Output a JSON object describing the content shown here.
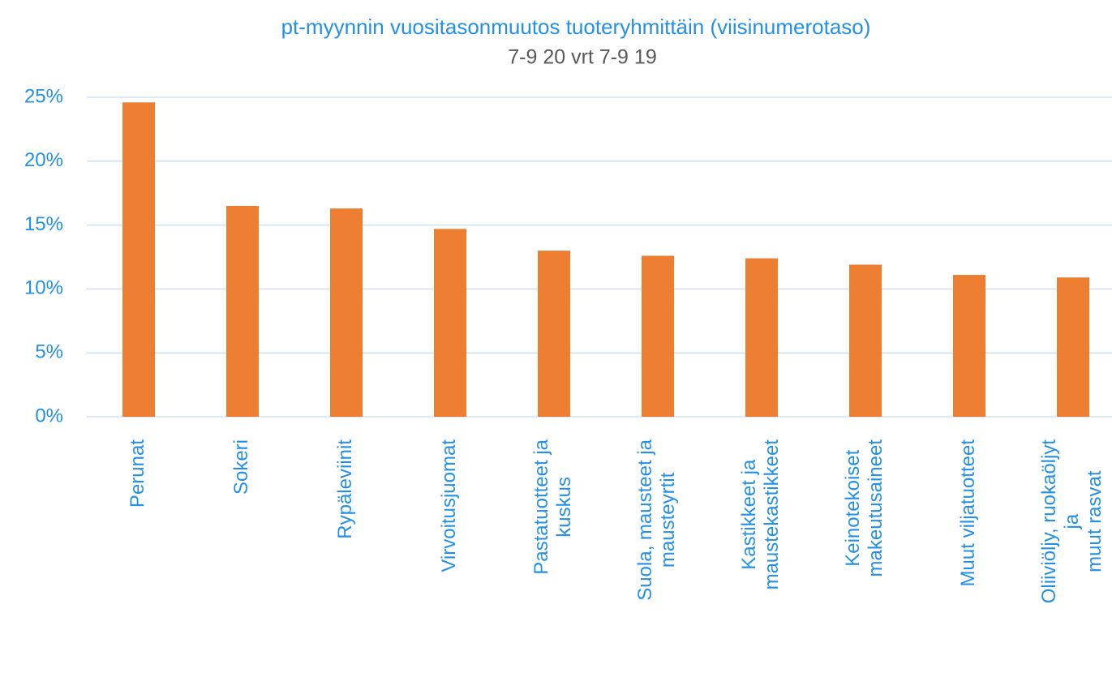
{
  "chart_data": {
    "type": "bar",
    "title": "pt-myynnin vuositasonmuutos tuoteryhmittäin (viisinumerotaso)",
    "subtitle": "7-9 20 vrt 7-9 19",
    "categories": [
      "Perunat",
      "Sokeri",
      "Rypäleviinit",
      "Virvoitusjuomat",
      "Pastatuotteet ja\nkuskus",
      "Suola, mausteet ja\nmausteyrtit",
      "Kastikkeet ja\nmaustekastikkeet",
      "Keinotekoiset\nmakeutusaineet",
      "Muut viljatuotteet",
      "Oliiviöljy, ruokaöljyt\nja\nmuut rasvat"
    ],
    "values": [
      24.6,
      16.5,
      16.3,
      14.7,
      13.0,
      12.6,
      12.4,
      11.9,
      11.1,
      10.9
    ],
    "color": "#ed7d31",
    "ylim": [
      0,
      25
    ],
    "yticks": [
      {
        "value": 0,
        "label": "0%"
      },
      {
        "value": 5,
        "label": "5%"
      },
      {
        "value": 10,
        "label": "10%"
      },
      {
        "value": 15,
        "label": "15%"
      },
      {
        "value": 20,
        "label": "20%"
      },
      {
        "value": 25,
        "label": "25%"
      }
    ],
    "grid": true
  }
}
